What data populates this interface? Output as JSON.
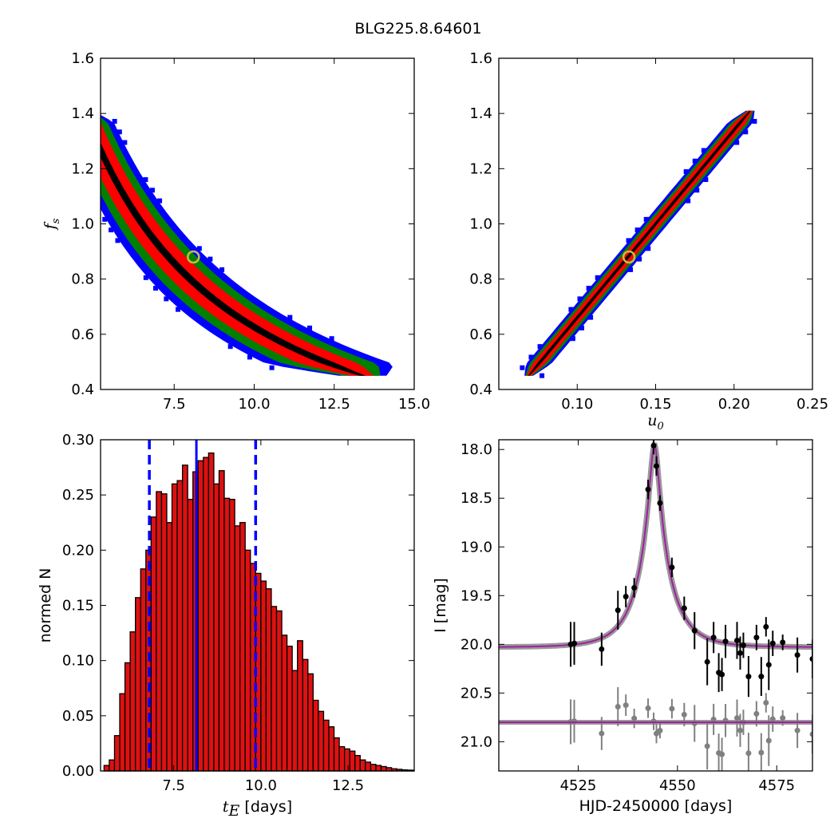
{
  "figure": {
    "title": "BLG225.8.64601"
  },
  "colors": {
    "contour_outer": "#0000ff",
    "contour_mid": "#008000",
    "contour_inner": "#ff0000",
    "contour_core": "#000000",
    "best_marker": "#bfbf3f",
    "hist_bar": "#dd1111",
    "hist_lines": "#0000ff",
    "model_curve": "#a020a0",
    "model_band": "#808080",
    "data_main": "#000000",
    "data_resid": "#808080"
  },
  "chart_data": [
    {
      "id": "fs-vs-tE",
      "type": "heatmap",
      "xlabel": "",
      "ylabel": "f_s",
      "ylabel_main": "f",
      "ylabel_sub": "s",
      "xlim": [
        5.2,
        15.0
      ],
      "ylim": [
        0.4,
        1.6
      ],
      "xticks": [
        7.5,
        10.0,
        12.5,
        15.0
      ],
      "xtick_labels": [
        "7.5",
        "10.0",
        "12.5",
        "15.0"
      ],
      "yticks": [
        0.4,
        0.6,
        0.8,
        1.0,
        1.2,
        1.4,
        1.6
      ],
      "ytick_labels": [
        "0.4",
        "0.6",
        "0.8",
        "1.0",
        "1.2",
        "1.4",
        "1.6"
      ],
      "relation": "hyperbola",
      "k": 6.96,
      "fs_range": [
        0.45,
        1.41
      ],
      "widths": {
        "blue": 0.16,
        "green": 0.12,
        "red": 0.075,
        "black": 0.02
      },
      "best_fit": {
        "x": 8.1,
        "y": 0.88
      }
    },
    {
      "id": "fs-vs-u0",
      "type": "heatmap",
      "xlabel": "u_0",
      "xlabel_main": "u",
      "xlabel_sub": "0",
      "ylabel": "",
      "xlim": [
        0.05,
        0.25
      ],
      "ylim": [
        0.4,
        1.6
      ],
      "xticks": [
        0.1,
        0.15,
        0.2,
        0.25
      ],
      "xtick_labels": [
        "0.10",
        "0.15",
        "0.20",
        "0.25"
      ],
      "yticks": [
        0.4,
        0.6,
        0.8,
        1.0,
        1.2,
        1.4,
        1.6
      ],
      "ytick_labels": [
        "0.4",
        "0.6",
        "0.8",
        "1.0",
        "1.2",
        "1.4",
        "1.6"
      ],
      "relation": "linear",
      "slope": 6.8,
      "intercept": -0.02,
      "fs_range": [
        0.45,
        1.41
      ],
      "widths": {
        "blue": 0.008,
        "green": 0.006,
        "red": 0.004,
        "black": 0.0012
      },
      "best_fit": {
        "x": 0.133,
        "y": 0.88
      }
    },
    {
      "id": "tE-histogram",
      "type": "bar",
      "xlabel_main": "t",
      "xlabel_sub": "E",
      "xlabel_rest": "  [days]",
      "ylabel": "normed N",
      "xlim": [
        5.4,
        14.4
      ],
      "ylim": [
        0.0,
        0.3
      ],
      "xticks": [
        7.5,
        10.0,
        12.5
      ],
      "xtick_labels": [
        "7.5",
        "10.0",
        "12.5"
      ],
      "yticks": [
        0.0,
        0.05,
        0.1,
        0.15,
        0.2,
        0.25,
        0.3
      ],
      "ytick_labels": [
        "0.00",
        "0.05",
        "0.10",
        "0.15",
        "0.20",
        "0.25",
        "0.30"
      ],
      "bin_start": 5.5,
      "bin_width": 0.15,
      "values": [
        0.005,
        0.01,
        0.032,
        0.07,
        0.098,
        0.126,
        0.157,
        0.183,
        0.2,
        0.23,
        0.253,
        0.251,
        0.225,
        0.26,
        0.263,
        0.277,
        0.246,
        0.271,
        0.281,
        0.284,
        0.288,
        0.26,
        0.272,
        0.247,
        0.246,
        0.222,
        0.225,
        0.2,
        0.188,
        0.179,
        0.172,
        0.165,
        0.149,
        0.145,
        0.123,
        0.113,
        0.091,
        0.118,
        0.101,
        0.088,
        0.064,
        0.054,
        0.046,
        0.04,
        0.03,
        0.022,
        0.02,
        0.018,
        0.014,
        0.01,
        0.008,
        0.006,
        0.005,
        0.004,
        0.003,
        0.002,
        0.0015,
        0.001,
        0.0008,
        0.0006,
        0.0004
      ],
      "median": 8.15,
      "lower": 6.8,
      "upper": 9.85
    },
    {
      "id": "light-curve",
      "type": "scatter",
      "xlabel": "HJD-2450000 [days]",
      "ylabel": "I [mag]",
      "xlim": [
        4505,
        4584
      ],
      "ylim": [
        21.3,
        17.9
      ],
      "y_inverted": true,
      "xticks": [
        4525,
        4550,
        4575
      ],
      "xtick_labels": [
        "4525",
        "4550",
        "4575"
      ],
      "yticks": [
        18.0,
        18.5,
        19.0,
        19.5,
        20.0,
        20.5,
        21.0
      ],
      "ytick_labels": [
        "18.0",
        "18.5",
        "19.0",
        "19.5",
        "20.0",
        "20.5",
        "21.0"
      ],
      "model": {
        "t0": 4544.2,
        "tE": 8.1,
        "u0": 0.133,
        "fs": 0.88,
        "I_base": 20.03
      },
      "residual_baseline": 20.8,
      "points": [
        {
          "x": 4523.1,
          "y": 20.0,
          "err": 0.23
        },
        {
          "x": 4524.0,
          "y": 19.99,
          "err": 0.22
        },
        {
          "x": 4530.9,
          "y": 20.05,
          "err": 0.17
        },
        {
          "x": 4535.0,
          "y": 19.65,
          "err": 0.2
        },
        {
          "x": 4537.0,
          "y": 19.51,
          "err": 0.11
        },
        {
          "x": 4539.1,
          "y": 19.42,
          "err": 0.1
        },
        {
          "x": 4542.6,
          "y": 18.41,
          "err": 0.1
        },
        {
          "x": 4544.0,
          "y": 17.96,
          "err": 0.09
        },
        {
          "x": 4544.7,
          "y": 18.17,
          "err": 0.1
        },
        {
          "x": 4545.6,
          "y": 18.55,
          "err": 0.08
        },
        {
          "x": 4548.6,
          "y": 19.21,
          "err": 0.1
        },
        {
          "x": 4551.7,
          "y": 19.63,
          "err": 0.12
        },
        {
          "x": 4554.3,
          "y": 19.86,
          "err": 0.19
        },
        {
          "x": 4557.5,
          "y": 20.18,
          "err": 0.24
        },
        {
          "x": 4559.1,
          "y": 19.93,
          "err": 0.16
        },
        {
          "x": 4560.4,
          "y": 20.29,
          "err": 0.2
        },
        {
          "x": 4561.2,
          "y": 20.31,
          "err": 0.17
        },
        {
          "x": 4562.1,
          "y": 19.97,
          "err": 0.17
        },
        {
          "x": 4565.0,
          "y": 19.96,
          "err": 0.19
        },
        {
          "x": 4565.8,
          "y": 20.09,
          "err": 0.17
        },
        {
          "x": 4566.6,
          "y": 20.01,
          "err": 0.13
        },
        {
          "x": 4567.9,
          "y": 20.33,
          "err": 0.21
        },
        {
          "x": 4569.9,
          "y": 19.93,
          "err": 0.13
        },
        {
          "x": 4571.1,
          "y": 20.33,
          "err": 0.2
        },
        {
          "x": 4572.3,
          "y": 19.82,
          "err": 0.1
        },
        {
          "x": 4573.0,
          "y": 20.21,
          "err": 0.26
        },
        {
          "x": 4574.0,
          "y": 19.99,
          "err": 0.13
        },
        {
          "x": 4576.5,
          "y": 19.98,
          "err": 0.08
        },
        {
          "x": 4580.2,
          "y": 20.11,
          "err": 0.18
        },
        {
          "x": 4584.0,
          "y": 20.15,
          "err": 0.2
        }
      ]
    }
  ]
}
